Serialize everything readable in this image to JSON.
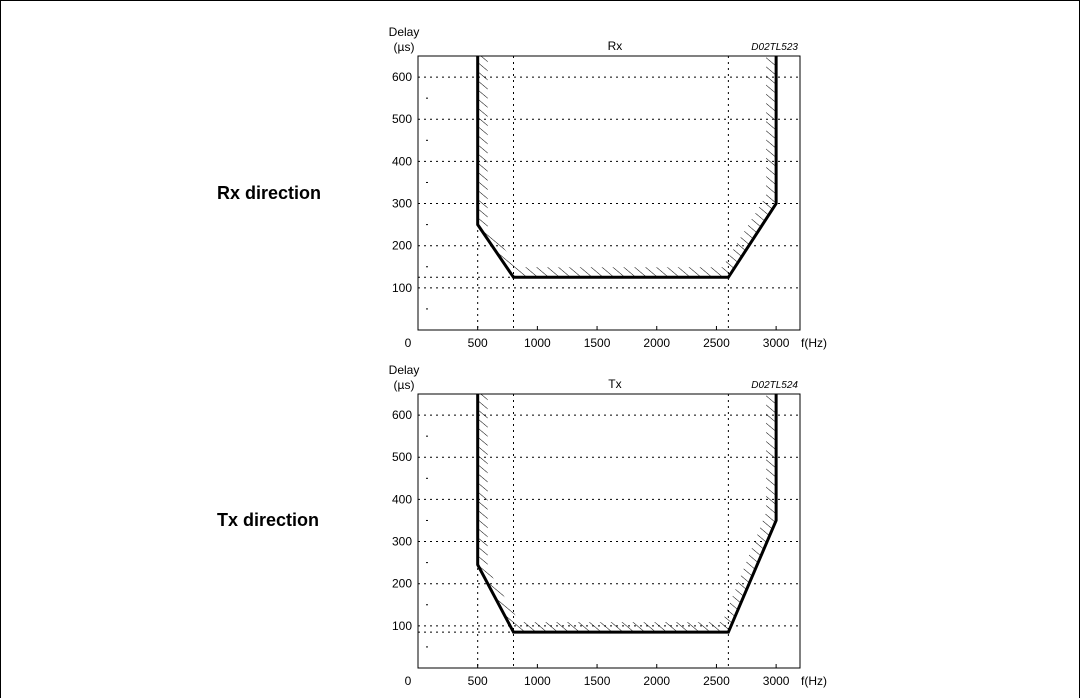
{
  "panels": [
    {
      "side_label": "Rx direction",
      "chart_data": {
        "type": "line",
        "title": "Rx",
        "code": "D02TL523",
        "ylabel_lines": [
          "Delay",
          "(µs)"
        ],
        "xlabel": "f(Hz)",
        "x_ticks": [
          0,
          500,
          1000,
          1500,
          2000,
          2500,
          3000
        ],
        "x_tick_labels": [
          "0",
          "500",
          "1000",
          "1500",
          "2000",
          "2500",
          "3000"
        ],
        "y_ticks": [
          100,
          200,
          300,
          400,
          500,
          600
        ],
        "y_tick_labels": [
          "100",
          "200",
          "300",
          "400",
          "500",
          "600"
        ],
        "xlim": [
          0,
          3200
        ],
        "ylim": [
          0,
          650
        ],
        "grid": true,
        "series": [
          {
            "x": [
              500,
              500,
              800,
              2600,
              3000,
              3000
            ],
            "y": [
              650,
              250,
              125,
              125,
              300,
              650
            ]
          }
        ]
      }
    },
    {
      "side_label": "Tx direction",
      "chart_data": {
        "type": "line",
        "title": "Tx",
        "code": "D02TL524",
        "ylabel_lines": [
          "Delay",
          "(µs)"
        ],
        "xlabel": "f(Hz)",
        "x_ticks": [
          0,
          500,
          1000,
          1500,
          2000,
          2500,
          3000
        ],
        "x_tick_labels": [
          "0",
          "500",
          "1000",
          "1500",
          "2000",
          "2500",
          "3000"
        ],
        "y_ticks": [
          100,
          200,
          300,
          400,
          500,
          600
        ],
        "y_tick_labels": [
          "100",
          "200",
          "300",
          "400",
          "500",
          "600"
        ],
        "xlim": [
          0,
          3200
        ],
        "ylim": [
          0,
          650
        ],
        "grid": true,
        "series": [
          {
            "x": [
              500,
              500,
              800,
              2600,
              3000,
              3000
            ],
            "y": [
              650,
              245,
              85,
              85,
              350,
              650
            ]
          }
        ]
      }
    }
  ]
}
